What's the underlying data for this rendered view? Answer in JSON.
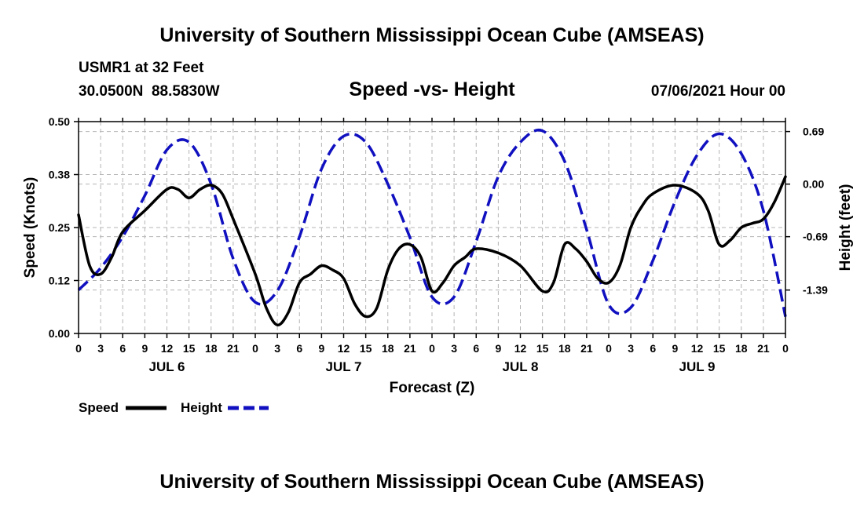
{
  "header": {
    "title": "University of Southern Mississippi Ocean Cube (AMSEAS)",
    "station": "USMR1 at 32 Feet",
    "coords": "30.0500N  88.5830W",
    "subtitle": "Speed -vs- Height",
    "datetime": "07/06/2021 Hour 00"
  },
  "footer": {
    "title": "University of Southern Mississippi Ocean Cube (AMSEAS)"
  },
  "colors": {
    "speed": "#000000",
    "height": "#1010c0",
    "grid": "#b4b4b4"
  },
  "chart_data": {
    "type": "line",
    "title": "Speed -vs- Height",
    "xlabel": "Forecast (Z)",
    "ylabel": "Speed (Knots)",
    "y2label": "Height (feet)",
    "x_unit": "hours since 07/06/2021 00Z",
    "xlim": [
      0,
      96
    ],
    "ylim": [
      0,
      0.5
    ],
    "y2lim": [
      -1.96,
      0.82
    ],
    "grid": true,
    "legend_position": "bottom-left",
    "x_ticks": [
      0,
      3,
      6,
      9,
      12,
      15,
      18,
      21,
      24,
      27,
      30,
      33,
      36,
      39,
      42,
      45,
      48,
      51,
      54,
      57,
      60,
      63,
      66,
      69,
      72,
      75,
      78,
      81,
      84,
      87,
      90,
      93,
      96
    ],
    "x_tick_labels": [
      "0",
      "3",
      "6",
      "9",
      "12",
      "15",
      "18",
      "21",
      "0",
      "3",
      "6",
      "9",
      "12",
      "15",
      "18",
      "21",
      "0",
      "3",
      "6",
      "9",
      "12",
      "15",
      "18",
      "21",
      "0",
      "3",
      "6",
      "9",
      "12",
      "15",
      "18",
      "21",
      "0"
    ],
    "day_labels": [
      {
        "label": "JUL 6",
        "x": 12
      },
      {
        "label": "JUL 7",
        "x": 36
      },
      {
        "label": "JUL 8",
        "x": 60
      },
      {
        "label": "JUL 9",
        "x": 84
      }
    ],
    "y_ticks": [
      0.0,
      0.125,
      0.25,
      0.375,
      0.5
    ],
    "y_tick_labels": [
      "0.00",
      "0.12",
      "0.25",
      "0.38",
      "0.50"
    ],
    "y2_ticks": [
      0.69,
      0.0,
      -0.69,
      -1.39
    ],
    "y2_tick_labels": [
      "0.69",
      "0.00",
      "-0.69",
      "-1.39"
    ],
    "series": [
      {
        "name": "Speed",
        "axis": "left",
        "style": "solid",
        "x": [
          0,
          1.5,
          3,
          4.5,
          6,
          9,
          12,
          13.5,
          15,
          16.5,
          18,
          19.5,
          21,
          24,
          25.5,
          27,
          28.5,
          30,
          31.5,
          33,
          34.5,
          36,
          37.5,
          39,
          40.5,
          42,
          43.5,
          45,
          46.5,
          48,
          49.5,
          51,
          52.5,
          54,
          57,
          60,
          63,
          64.5,
          66,
          67.5,
          69,
          70.5,
          72,
          73.5,
          75,
          76.5,
          78,
          81,
          84,
          85.5,
          87,
          88.5,
          90,
          91.5,
          93,
          94.5,
          96
        ],
        "values": [
          0.28,
          0.16,
          0.14,
          0.18,
          0.24,
          0.29,
          0.34,
          0.34,
          0.32,
          0.34,
          0.35,
          0.33,
          0.27,
          0.14,
          0.06,
          0.02,
          0.05,
          0.12,
          0.14,
          0.16,
          0.15,
          0.13,
          0.07,
          0.04,
          0.06,
          0.15,
          0.2,
          0.21,
          0.18,
          0.1,
          0.12,
          0.16,
          0.18,
          0.2,
          0.19,
          0.16,
          0.1,
          0.12,
          0.21,
          0.2,
          0.17,
          0.13,
          0.12,
          0.16,
          0.25,
          0.3,
          0.33,
          0.35,
          0.33,
          0.29,
          0.21,
          0.22,
          0.25,
          0.26,
          0.27,
          0.31,
          0.37
        ]
      },
      {
        "name": "Height",
        "axis": "right",
        "style": "dashed",
        "x": [
          0,
          3,
          6,
          9,
          12,
          15,
          18,
          21,
          24,
          27,
          30,
          33,
          36,
          39,
          42,
          45,
          48,
          51,
          54,
          57,
          60,
          63,
          66,
          69,
          72,
          75,
          78,
          81,
          84,
          87,
          90,
          93,
          96
        ],
        "values": [
          -1.39,
          -1.1,
          -0.69,
          -0.15,
          0.45,
          0.55,
          0.0,
          -0.98,
          -1.55,
          -1.4,
          -0.69,
          0.2,
          0.63,
          0.55,
          0.0,
          -0.7,
          -1.48,
          -1.48,
          -0.75,
          0.1,
          0.55,
          0.7,
          0.3,
          -0.6,
          -1.58,
          -1.62,
          -1.0,
          -0.23,
          0.38,
          0.66,
          0.4,
          -0.35,
          -1.74
        ]
      }
    ]
  }
}
